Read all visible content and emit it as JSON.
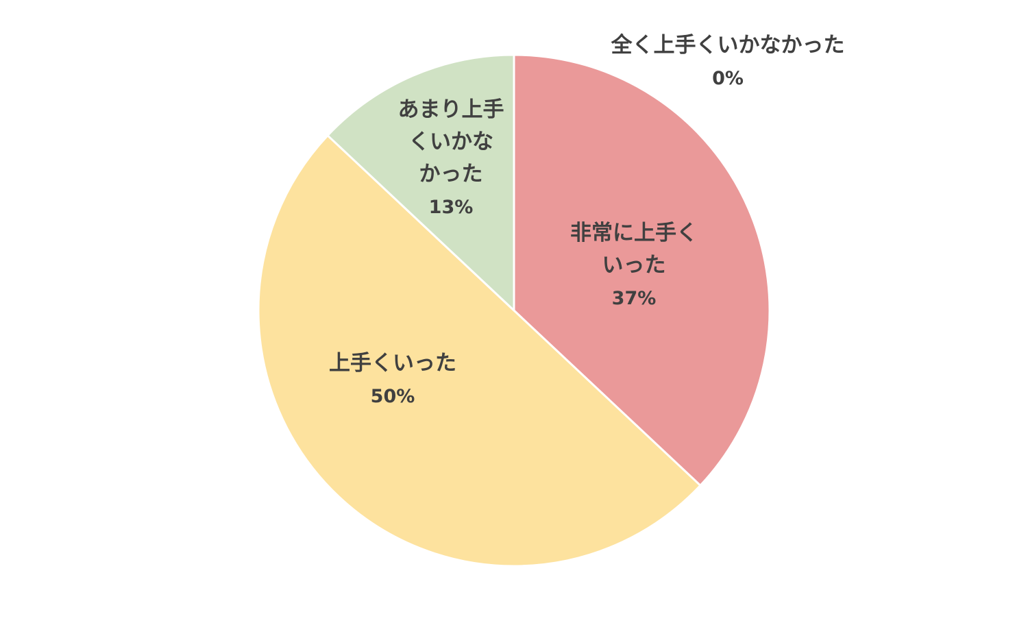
{
  "chart_data": {
    "type": "pie",
    "title": "",
    "start_angle_deg": 0,
    "direction": "clockwise",
    "slices": [
      {
        "label_lines": [
          "非常に上手く",
          "いった"
        ],
        "label": "非常に上手くいった",
        "value": 37,
        "value_label": "37%",
        "color": "#EA9999"
      },
      {
        "label_lines": [
          "上手くいった"
        ],
        "label": "上手くいった",
        "value": 50,
        "value_label": "50%",
        "color": "#FDE29E"
      },
      {
        "label_lines": [
          "あまり上手",
          "くいかな",
          "かった"
        ],
        "label": "あまり上手くいかなかった",
        "value": 13,
        "value_label": "13%",
        "color": "#D0E2C4"
      },
      {
        "label_lines": [
          "全く上手くいかなかった"
        ],
        "label": "全く上手くいかなかった",
        "value": 0,
        "value_label": "0%",
        "color": "#9DC3E6"
      }
    ],
    "slice_border_color": "#FFFFFF"
  }
}
